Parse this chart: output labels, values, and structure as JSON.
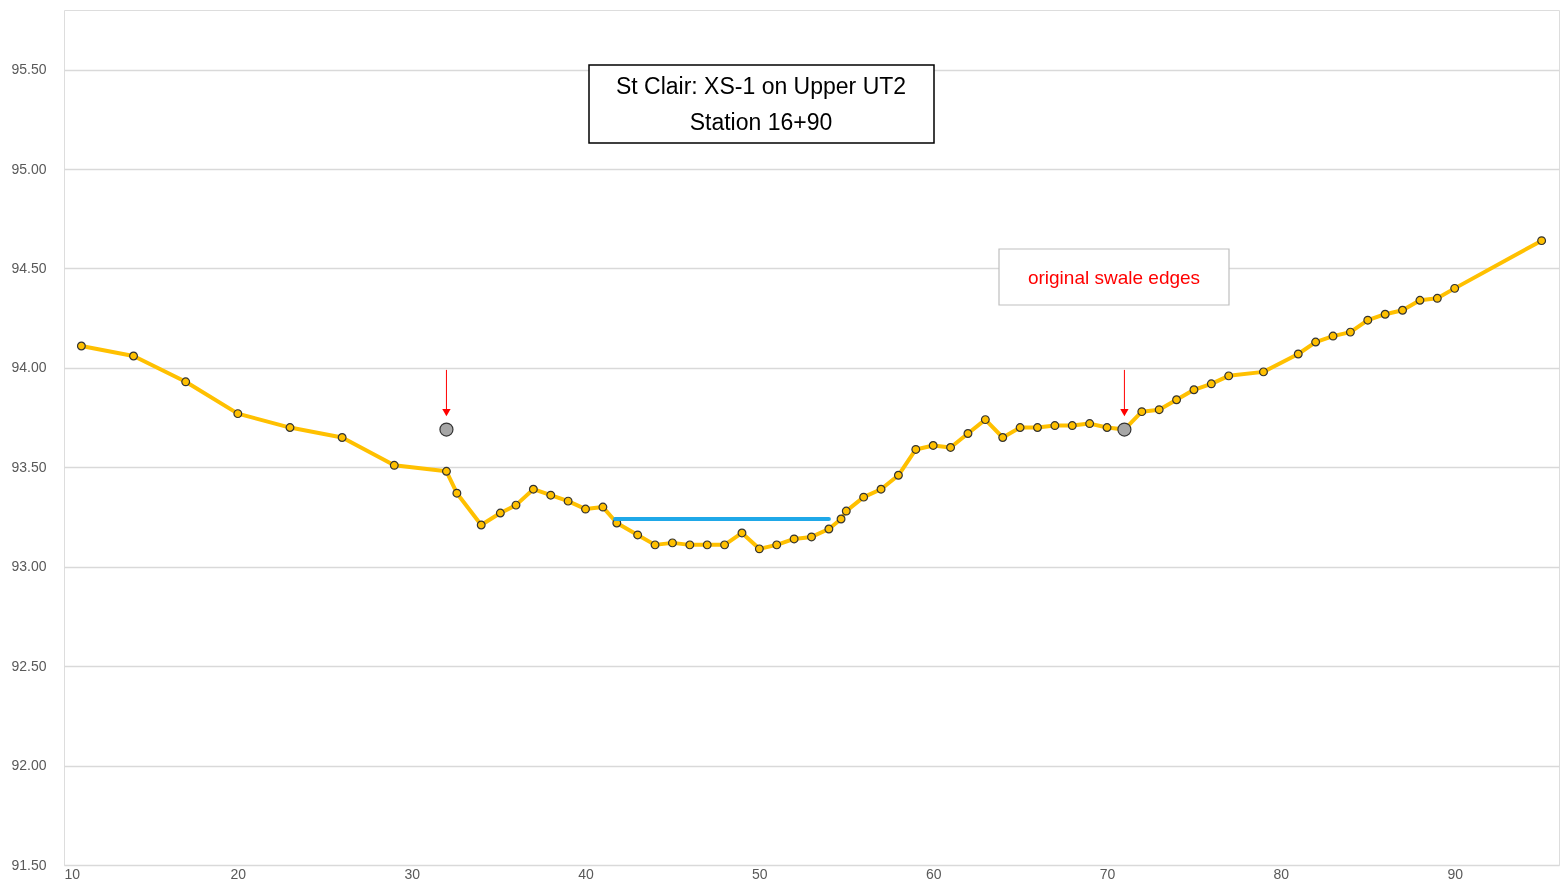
{
  "chart_data": {
    "type": "line",
    "title": "St Clair:  XS-1 on Upper UT2\nStation 16+90",
    "annotations": [
      "original swale edges"
    ],
    "xlim": [
      10,
      96
    ],
    "xticks": [
      10,
      20,
      30,
      40,
      50,
      60,
      70,
      80,
      90
    ],
    "ylim": [
      91.5,
      95.8
    ],
    "yticks": [
      {
        "value": 91.5,
        "label": "91.50"
      },
      {
        "value": 92,
        "label": "92.00"
      },
      {
        "value": 92.5,
        "label": "92.50"
      },
      {
        "value": 93,
        "label": "93.00"
      },
      {
        "value": 93.5,
        "label": "93.50"
      },
      {
        "value": 94,
        "label": "94.00"
      },
      {
        "value": 94.5,
        "label": "94.50"
      },
      {
        "value": 95,
        "label": "95.00"
      },
      {
        "value": 95.5,
        "label": "95.50"
      }
    ],
    "grid": "y",
    "series": [
      {
        "type": "line",
        "color": "#ffc000",
        "marker": "circle",
        "x": [
          11,
          14,
          17,
          20,
          23,
          26,
          29,
          32,
          32.6,
          34,
          35.1,
          36,
          37,
          38,
          39,
          40,
          41,
          41.8,
          43,
          44,
          45,
          46,
          47,
          48,
          49,
          50,
          51,
          52,
          53,
          54,
          54.7,
          55,
          56,
          57,
          58,
          59,
          60,
          61,
          62,
          63,
          64,
          65,
          66,
          67,
          68,
          69,
          70,
          71,
          72,
          73,
          74,
          75,
          76,
          77,
          79,
          81,
          82,
          83,
          84,
          85,
          86,
          87,
          88,
          89,
          90,
          95
        ],
        "values": [
          94.11,
          94.06,
          93.93,
          93.77,
          93.7,
          93.65,
          93.51,
          93.48,
          93.37,
          93.21,
          93.27,
          93.31,
          93.39,
          93.36,
          93.33,
          93.29,
          93.3,
          93.22,
          93.16,
          93.11,
          93.12,
          93.11,
          93.11,
          93.11,
          93.17,
          93.09,
          93.11,
          93.14,
          93.15,
          93.19,
          93.24,
          93.28,
          93.35,
          93.39,
          93.46,
          93.59,
          93.61,
          93.6,
          93.67,
          93.74,
          93.65,
          93.7,
          93.7,
          93.71,
          93.71,
          93.72,
          93.7,
          93.69,
          93.78,
          93.79,
          93.84,
          93.89,
          93.92,
          93.96,
          93.98,
          94.07,
          94.13,
          94.16,
          94.18,
          94.24,
          94.27,
          94.29,
          94.34,
          94.35,
          94.4,
          94.64
        ]
      },
      {
        "type": "scatter",
        "color": "#a6a6a6",
        "marker": "circle",
        "x": [
          32,
          71
        ],
        "values": [
          93.69,
          93.69
        ]
      },
      {
        "type": "line",
        "color": "#1fa8e8",
        "marker": "none",
        "x": [
          41.7,
          54
        ],
        "values": [
          93.24,
          93.24
        ]
      }
    ]
  }
}
